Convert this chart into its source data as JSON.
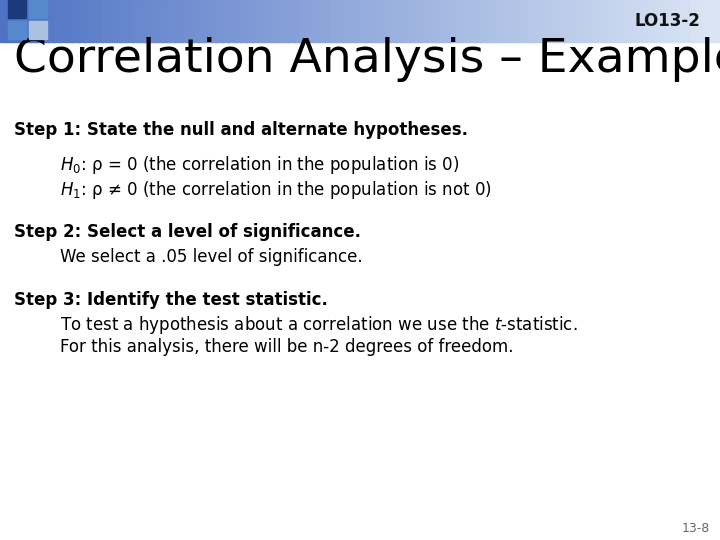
{
  "title": "Correlation Analysis – Example",
  "lo_label": "LO13-2",
  "step1_bold": "Step 1: State the null and alternate hypotheses.",
  "h0_line": "$H_0$: ρ = 0 (the correlation in the population is 0)",
  "h1_line": "$H_1$: ρ ≠ 0 (the correlation in the population is not 0)",
  "step2_bold": "Step 2: Select a level of significance.",
  "step2_normal": "We select a .05 level of significance.",
  "step3_bold": "Step 3: Identify the test statistic.",
  "step3_line1": "To test a hypothesis about a correlation we use the $t$-statistic.",
  "step3_line2": "For this analysis, there will be n-2 degrees of freedom.",
  "page_num": "13-8",
  "bg_color": "#ffffff",
  "text_color": "#000000",
  "title_fontsize": 34,
  "step_bold_fontsize": 12,
  "body_fontsize": 12,
  "lo_fontsize": 12,
  "page_num_fontsize": 9
}
